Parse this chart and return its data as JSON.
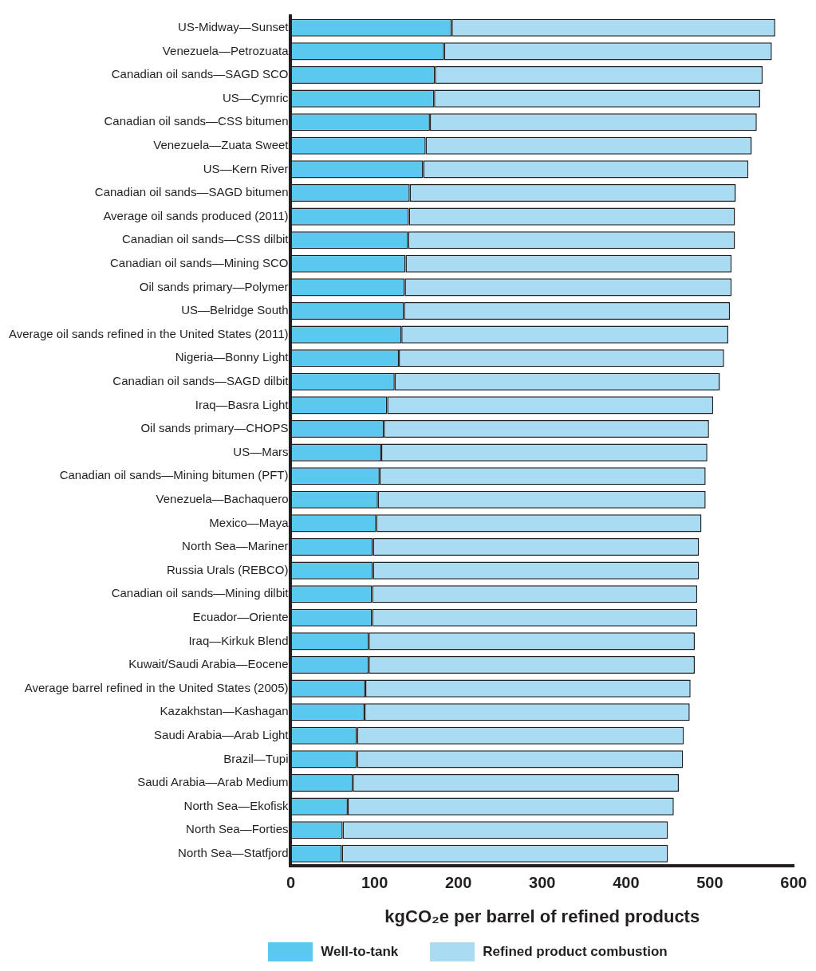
{
  "chart_data": {
    "type": "bar",
    "orientation": "horizontal",
    "stacked": true,
    "xlabel": "kgCO₂e per barrel of refined products",
    "legend": "bottom",
    "grid": false,
    "categories": [
      "US-Midway—Sunset",
      "Venezuela—Petrozuata",
      "Canadian oil sands—SAGD SCO",
      "US—Cymric",
      "Canadian oil sands—CSS bitumen",
      "Venezuela—Zuata Sweet",
      "US—Kern River",
      "Canadian oil sands—SAGD bitumen",
      "Average oil sands produced (2011)",
      "Canadian oil sands—CSS dilbit",
      "Canadian oil sands—Mining SCO",
      "Oil sands primary—Polymer",
      "US—Belridge South",
      "Average oil sands refined in the United States (2011)",
      "Nigeria—Bonny Light",
      "Canadian oil sands—SAGD dilbit",
      "Iraq—Basra Light",
      "Oil sands primary—CHOPS",
      "US—Mars",
      "Canadian oil sands—Mining bitumen (PFT)",
      "Venezuela—Bachaquero",
      "Mexico—Maya",
      "North Sea—Mariner",
      "Russia Urals (REBCO)",
      "Canadian oil sands—Mining dilbit",
      "Ecuador—Oriente",
      "Iraq—Kirkuk Blend",
      "Kuwait/Saudi Arabia—Eocene",
      "Average barrel refined in the United States (2005)",
      "Kazakhstan—Kashagan",
      "Saudi Arabia—Arab Light",
      "Brazil—Tupi",
      "Saudi Arabia—Arab Medium",
      "North Sea—Ekofisk",
      "North Sea—Forties",
      "North Sea—Statfjord"
    ],
    "series": [
      {
        "name": "Well-to-tank",
        "color": "#5bc8f0",
        "values": [
          192,
          183,
          172,
          171,
          166,
          161,
          158,
          142,
          141,
          140,
          137,
          136,
          135,
          132,
          129,
          124,
          115,
          111,
          108,
          106,
          104,
          102,
          98,
          98,
          97,
          97,
          93,
          93,
          89,
          88,
          79,
          79,
          74,
          68,
          62,
          61
        ]
      },
      {
        "name": "Refined product combustion",
        "color": "#a9dcf3",
        "values": [
          386,
          391,
          391,
          389,
          390,
          389,
          388,
          389,
          389,
          390,
          389,
          390,
          389,
          390,
          388,
          388,
          389,
          388,
          389,
          389,
          391,
          388,
          389,
          389,
          388,
          388,
          389,
          389,
          388,
          388,
          390,
          389,
          389,
          389,
          388,
          389
        ]
      }
    ],
    "xlim": [
      0,
      600
    ],
    "xticks": [
      0,
      100,
      200,
      300,
      400,
      500,
      600
    ]
  }
}
